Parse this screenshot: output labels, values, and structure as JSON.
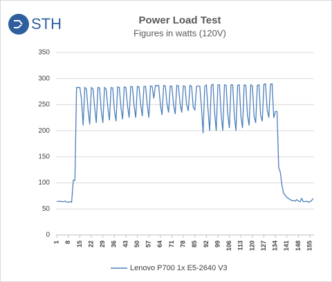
{
  "logo": "STH",
  "chart_data": {
    "type": "line",
    "title": "Power Load Test",
    "subtitle": "Figures in watts (120V)",
    "x": [
      1,
      2,
      3,
      4,
      5,
      6,
      7,
      8,
      9,
      10,
      11,
      12,
      13,
      14,
      15,
      16,
      17,
      18,
      19,
      20,
      21,
      22,
      23,
      24,
      25,
      26,
      27,
      28,
      29,
      30,
      31,
      32,
      33,
      34,
      35,
      36,
      37,
      38,
      39,
      40,
      41,
      42,
      43,
      44,
      45,
      46,
      47,
      48,
      49,
      50,
      51,
      52,
      53,
      54,
      55,
      56,
      57,
      58,
      59,
      60,
      61,
      62,
      63,
      64,
      65,
      66,
      67,
      68,
      69,
      70,
      71,
      72,
      73,
      74,
      75,
      76,
      77,
      78,
      79,
      80,
      81,
      82,
      83,
      84,
      85,
      86,
      87,
      88,
      89,
      90,
      91,
      92,
      93,
      94,
      95,
      96,
      97,
      98,
      99,
      100,
      101,
      102,
      103,
      104,
      105,
      106,
      107,
      108,
      109,
      110,
      111,
      112,
      113,
      114,
      115,
      116,
      117,
      118,
      119,
      120,
      121,
      122,
      123,
      124,
      125,
      126,
      127,
      128,
      129,
      130,
      131,
      132,
      133,
      134,
      135,
      136,
      137,
      138,
      139,
      140,
      141,
      142,
      143,
      144,
      145,
      146,
      147,
      148,
      149,
      150,
      151,
      152,
      153,
      154,
      155,
      156,
      157
    ],
    "series": [
      {
        "name": "Lenovo P700 1x E5-2640 V3",
        "color": "#4a7ebb",
        "values": [
          65,
          64,
          65,
          64,
          64,
          65,
          63,
          63,
          64,
          63,
          105,
          105,
          283,
          283,
          283,
          260,
          210,
          283,
          280,
          240,
          212,
          283,
          280,
          245,
          215,
          283,
          282,
          240,
          215,
          283,
          280,
          245,
          220,
          283,
          282,
          240,
          218,
          284,
          283,
          245,
          222,
          284,
          283,
          248,
          225,
          285,
          284,
          248,
          225,
          285,
          284,
          250,
          228,
          285,
          285,
          250,
          225,
          286,
          285,
          262,
          287,
          286,
          287,
          250,
          230,
          287,
          286,
          252,
          235,
          286,
          285,
          250,
          232,
          287,
          286,
          252,
          235,
          286,
          285,
          250,
          238,
          287,
          285,
          245,
          240,
          285,
          286,
          285,
          245,
          195,
          285,
          288,
          240,
          200,
          287,
          289,
          235,
          200,
          288,
          288,
          230,
          200,
          288,
          287,
          232,
          205,
          288,
          288,
          230,
          200,
          287,
          288,
          228,
          205,
          288,
          287,
          230,
          210,
          288,
          286,
          228,
          215,
          287,
          288,
          230,
          218,
          289,
          290,
          240,
          225,
          289,
          290,
          225,
          237,
          237,
          130,
          120,
          95,
          80,
          76,
          72,
          70,
          68,
          66,
          66,
          65,
          68,
          65,
          64,
          70,
          64,
          64,
          65,
          63,
          64,
          66,
          70
        ]
      }
    ],
    "xlim": [
      0.5,
      157.5
    ],
    "xticks": [
      1,
      8,
      15,
      22,
      29,
      36,
      43,
      50,
      57,
      64,
      71,
      78,
      85,
      92,
      99,
      106,
      113,
      120,
      127,
      134,
      141,
      148,
      155
    ],
    "ylim": [
      0,
      350
    ],
    "yticks": [
      0,
      50,
      100,
      150,
      200,
      250,
      300,
      350
    ],
    "grid": true,
    "legend": "bottom"
  }
}
